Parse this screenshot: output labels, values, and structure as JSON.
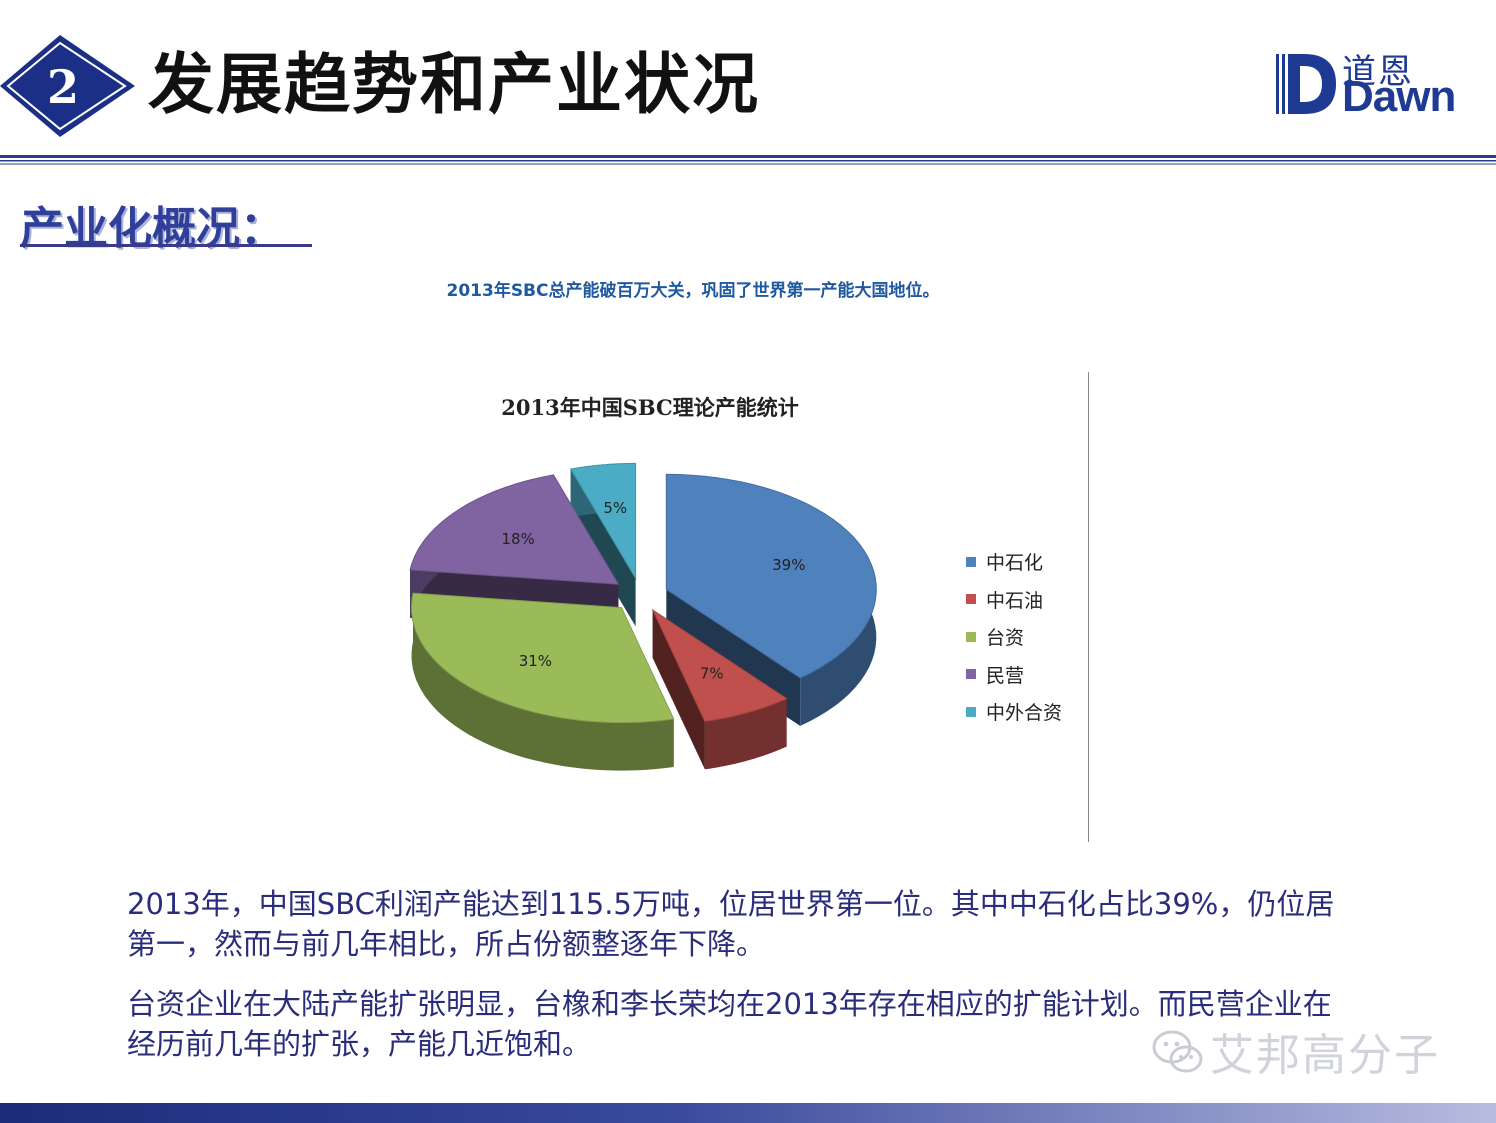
{
  "header": {
    "section_number": "2",
    "title": "发展趋势和产业状况",
    "logo_cn": "道恩",
    "logo_en": "Dawn"
  },
  "section": {
    "subheading": "产业化概况："
  },
  "headline": "2013年SBC总产能破百万大关，巩固了世界第一产能大国地位。",
  "chart_data": {
    "type": "pie",
    "title": "2013年中国SBC理论产能统计",
    "categories": [
      "中石化",
      "中石油",
      "台资",
      "民营",
      "中外合资"
    ],
    "values": [
      39,
      7,
      31,
      18,
      5
    ],
    "value_labels": [
      "39%",
      "7%",
      "31%",
      "18%",
      "5%"
    ],
    "colors": [
      "#4f81bd",
      "#c0504d",
      "#9bbb59",
      "#8064a2",
      "#4bacc6"
    ],
    "exploded": true,
    "three_d": true,
    "legend_position": "right"
  },
  "paragraphs": {
    "p1": "2013年，中国SBC利润产能达到115.5万吨，位居世界第一位。其中中石化占比39%，仍位居第一，然而与前几年相比，所占份额整逐年下降。",
    "p2": "台资企业在大陆产能扩张明显，台橡和李长荣均在2013年存在相应的扩能计划。而民营企业在经历前几年的扩张，产能几近饱和。"
  },
  "watermark": {
    "text": "艾邦高分子",
    "icon": "wechat-icon"
  },
  "colors": {
    "brand_blue": "#1f3a93",
    "text_blue": "#2a2e7a"
  }
}
